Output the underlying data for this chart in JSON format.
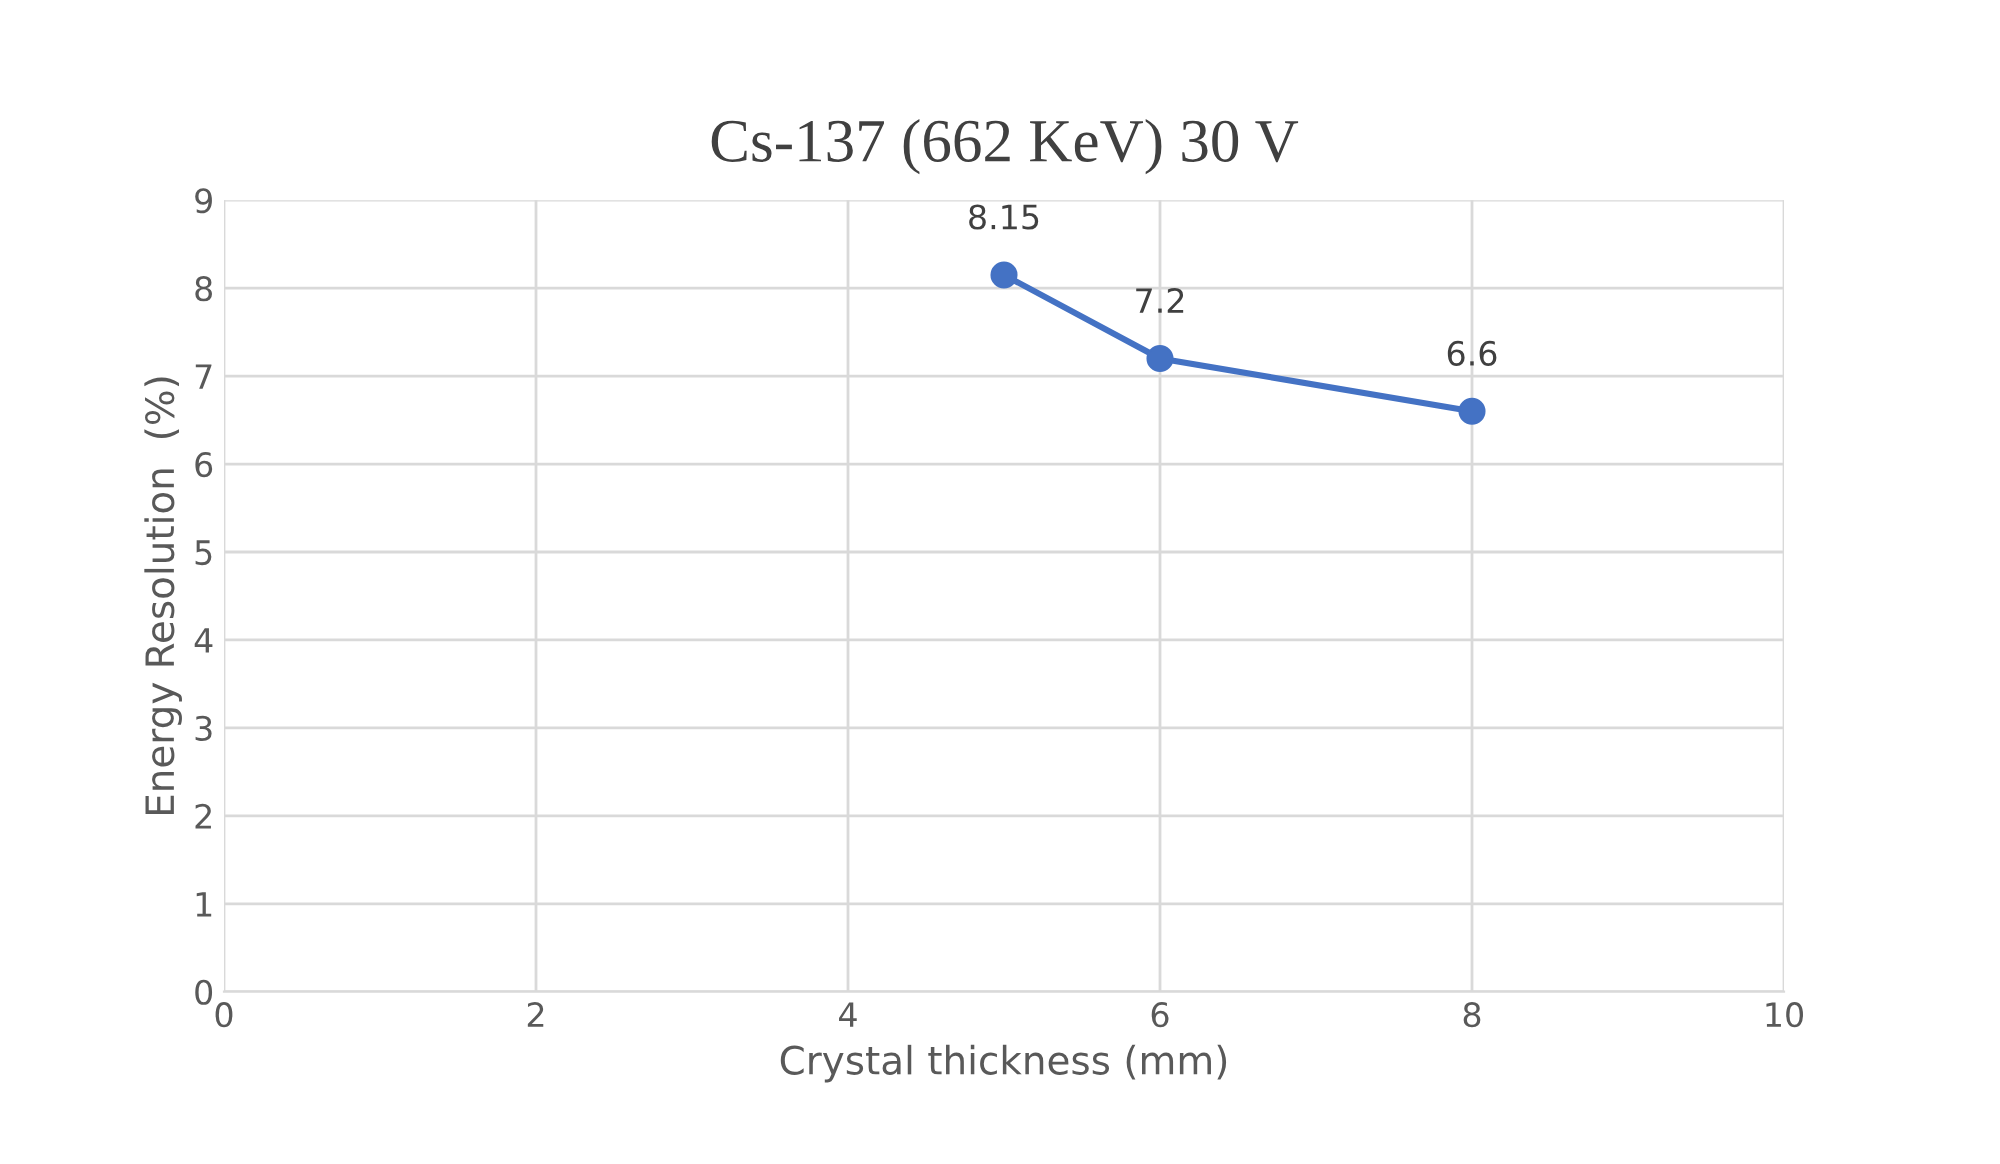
{
  "chart_data": {
    "type": "line",
    "title": "Cs-137 (662 KeV) 30 V",
    "xlabel": "Crystal thickness (mm)",
    "ylabel": "Energy Resolution  (%)",
    "x": [
      5,
      6,
      8
    ],
    "series": [
      {
        "color": "#4472c4",
        "values": [
          8.15,
          7.2,
          6.6
        ]
      }
    ],
    "xlim": [
      0,
      10
    ],
    "xticks": [
      0,
      2,
      4,
      6,
      8,
      10
    ],
    "ylim": [
      0,
      9
    ],
    "yticks": [
      0,
      1,
      2,
      3,
      4,
      5,
      6,
      7,
      8,
      9
    ],
    "grid": true,
    "marker": "circle",
    "line_style": "solid",
    "data_labels": true,
    "legend": false
  }
}
